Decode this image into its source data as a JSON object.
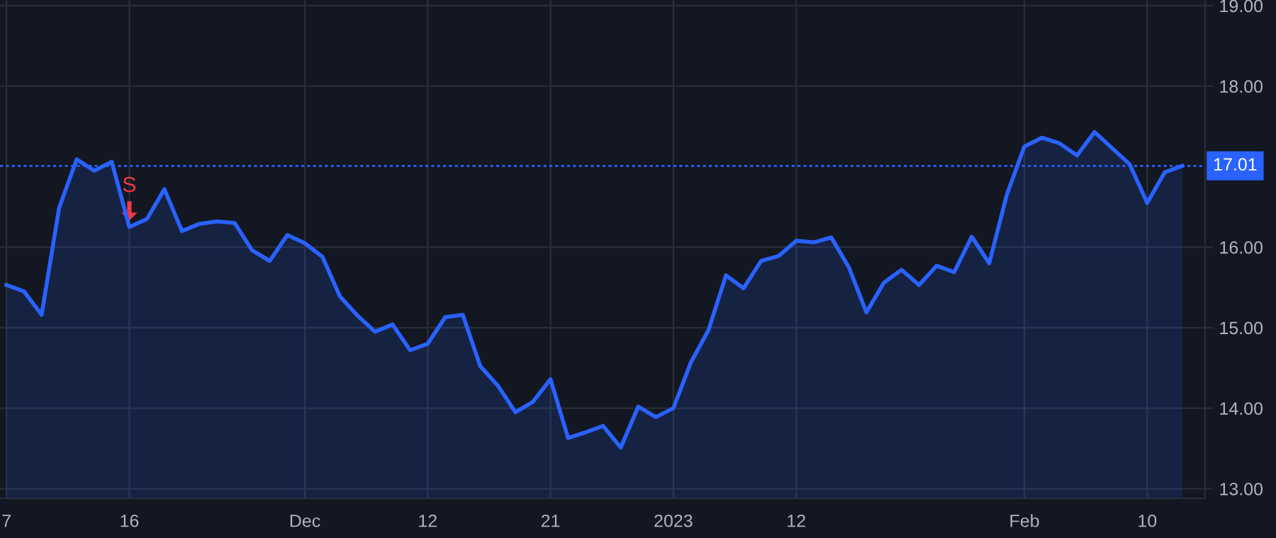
{
  "chart_data": {
    "type": "area",
    "categories": [
      "7",
      null,
      null,
      null,
      null,
      null,
      null,
      "16",
      null,
      null,
      null,
      null,
      null,
      null,
      null,
      null,
      null,
      "Dec",
      null,
      null,
      null,
      null,
      null,
      null,
      "12",
      null,
      null,
      null,
      null,
      null,
      null,
      "21",
      null,
      null,
      null,
      null,
      null,
      null,
      "2023",
      null,
      null,
      null,
      null,
      null,
      null,
      "12",
      null,
      null,
      null,
      null,
      null,
      null,
      null,
      null,
      null,
      null,
      null,
      null,
      "Feb",
      null,
      null,
      null,
      null,
      null,
      null,
      "10",
      null,
      null
    ],
    "series": [
      {
        "color": "#2962ff",
        "values": [
          15.53,
          15.45,
          15.16,
          16.49,
          17.09,
          16.95,
          17.06,
          16.25,
          16.35,
          16.72,
          16.2,
          16.29,
          16.32,
          16.3,
          15.96,
          15.83,
          16.15,
          16.05,
          15.88,
          15.39,
          15.15,
          14.95,
          15.04,
          14.72,
          14.8,
          15.13,
          15.16,
          14.52,
          14.28,
          13.95,
          14.08,
          14.36,
          13.63,
          13.7,
          13.78,
          13.51,
          14.02,
          13.89,
          14.0,
          14.57,
          14.97,
          15.65,
          15.49,
          15.83,
          15.89,
          16.08,
          16.06,
          16.12,
          15.75,
          15.19,
          15.56,
          15.72,
          15.53,
          15.77,
          15.69,
          16.13,
          15.8,
          16.65,
          17.25,
          17.36,
          17.29,
          17.14,
          17.43,
          17.23,
          17.03,
          16.55,
          16.93,
          17.01
        ]
      }
    ],
    "ylim": [
      12.88,
      19.07
    ],
    "yticks": [
      {
        "value": 13,
        "label": "13.00"
      },
      {
        "value": 14,
        "label": "14.00"
      },
      {
        "value": 15,
        "label": "15.00"
      },
      {
        "value": 16,
        "label": "16.00"
      },
      {
        "value": 18,
        "label": "18.00"
      },
      {
        "value": 19,
        "label": "19.00"
      }
    ],
    "ref_lines": [
      {
        "axis": "y",
        "value": 17.01,
        "label": "17.01",
        "color": "#2962ff",
        "line_style": "dotted"
      }
    ],
    "annotations": [
      {
        "text": "S",
        "x": "16",
        "y": 16.25
      }
    ],
    "grid": true,
    "legend": false
  }
}
